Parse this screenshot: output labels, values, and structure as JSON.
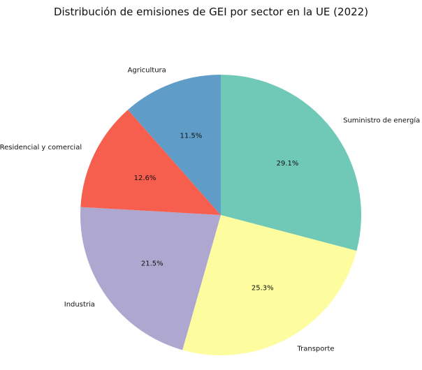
{
  "chart_data": {
    "type": "pie",
    "title": "Distribución de emisiones de GEI por sector en la UE (2022)",
    "start_angle_deg": 90,
    "direction": "clockwise",
    "slices": [
      {
        "label": "Suministro de energía",
        "value": 29.1,
        "pct_label": "29.1%",
        "color": "#70c9b7"
      },
      {
        "label": "Transporte",
        "value": 25.3,
        "pct_label": "25.3%",
        "color": "#fdfc9e"
      },
      {
        "label": "Industria",
        "value": 21.5,
        "pct_label": "21.5%",
        "color": "#aea8d1"
      },
      {
        "label": "Residencial y comercial",
        "value": 12.6,
        "pct_label": "12.6%",
        "color": "#f65e4e"
      },
      {
        "label": "Agricultura",
        "value": 11.5,
        "pct_label": "11.5%",
        "color": "#5f9dc8"
      }
    ]
  }
}
